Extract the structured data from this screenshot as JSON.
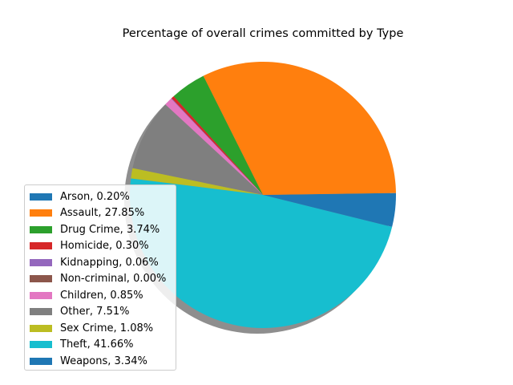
{
  "chart_data": {
    "type": "pie",
    "title": "Percentage of overall crimes committed by Type",
    "start_angle_deg": 0,
    "shadow": true,
    "legend_position": "lower-left",
    "slices": [
      {
        "label": "Arson, 0.20%",
        "value": 0.2,
        "color": "#1f77b4"
      },
      {
        "label": "Assault, 27.85%",
        "value": 27.85,
        "color": "#ff7f0e"
      },
      {
        "label": "Drug Crime, 3.74%",
        "value": 3.74,
        "color": "#2ca02c"
      },
      {
        "label": "Homicide, 0.30%",
        "value": 0.3,
        "color": "#d62728"
      },
      {
        "label": "Kidnapping, 0.06%",
        "value": 0.06,
        "color": "#9467bd"
      },
      {
        "label": "Non-criminal, 0.00%",
        "value": 0.0,
        "color": "#8c564b"
      },
      {
        "label": "Children, 0.85%",
        "value": 0.85,
        "color": "#e377c2"
      },
      {
        "label": "Other, 7.51%",
        "value": 7.51,
        "color": "#7f7f7f"
      },
      {
        "label": "Sex Crime, 1.08%",
        "value": 1.08,
        "color": "#bcbd22"
      },
      {
        "label": "Theft, 41.66%",
        "value": 41.66,
        "color": "#17becf"
      },
      {
        "label": "Weapons, 3.34%",
        "value": 3.34,
        "color": "#1f77b4"
      }
    ]
  }
}
